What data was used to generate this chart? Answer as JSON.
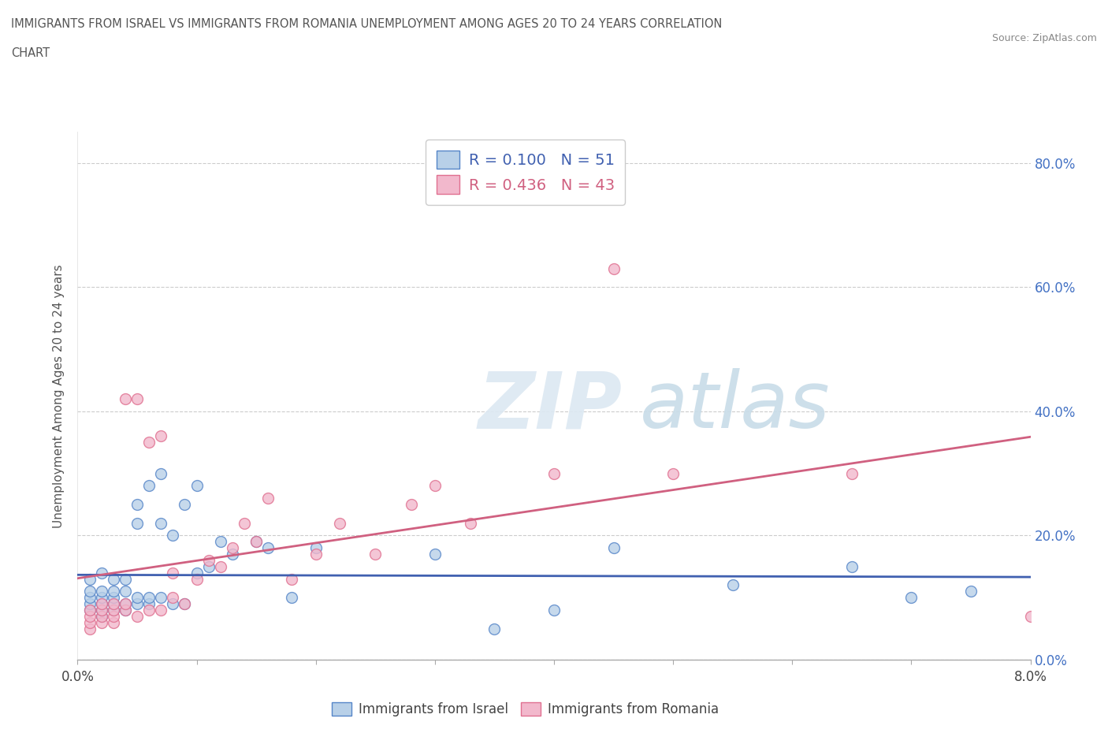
{
  "title_line1": "IMMIGRANTS FROM ISRAEL VS IMMIGRANTS FROM ROMANIA UNEMPLOYMENT AMONG AGES 20 TO 24 YEARS CORRELATION",
  "title_line2": "CHART",
  "source": "Source: ZipAtlas.com",
  "ylabel": "Unemployment Among Ages 20 to 24 years",
  "xlim": [
    0.0,
    0.08
  ],
  "ylim": [
    0.0,
    0.85
  ],
  "xticks": [
    0.0,
    0.01,
    0.02,
    0.03,
    0.04,
    0.05,
    0.06,
    0.07,
    0.08
  ],
  "yticks": [
    0.0,
    0.2,
    0.4,
    0.6,
    0.8
  ],
  "ytick_labels": [
    "0.0%",
    "20.0%",
    "40.0%",
    "60.0%",
    "80.0%"
  ],
  "xtick_labels": [
    "0.0%",
    "",
    "",
    "",
    "",
    "",
    "",
    "",
    "8.0%"
  ],
  "israel_color": "#b8d0e8",
  "romania_color": "#f2b8cc",
  "israel_edge_color": "#5585c8",
  "romania_edge_color": "#e07090",
  "israel_line_color": "#4060b0",
  "romania_line_color": "#d06080",
  "israel_label": "Immigrants from Israel",
  "romania_label": "Immigrants from Romania",
  "R_israel": 0.1,
  "N_israel": 51,
  "R_romania": 0.436,
  "N_romania": 43,
  "background_color": "#ffffff",
  "grid_color": "#cccccc",
  "israel_x": [
    0.001,
    0.001,
    0.001,
    0.001,
    0.001,
    0.002,
    0.002,
    0.002,
    0.002,
    0.002,
    0.002,
    0.003,
    0.003,
    0.003,
    0.003,
    0.003,
    0.004,
    0.004,
    0.004,
    0.004,
    0.005,
    0.005,
    0.005,
    0.005,
    0.006,
    0.006,
    0.006,
    0.007,
    0.007,
    0.007,
    0.008,
    0.008,
    0.009,
    0.009,
    0.01,
    0.01,
    0.011,
    0.012,
    0.013,
    0.015,
    0.016,
    0.018,
    0.02,
    0.03,
    0.035,
    0.04,
    0.045,
    0.055,
    0.065,
    0.07,
    0.075
  ],
  "israel_y": [
    0.08,
    0.09,
    0.1,
    0.11,
    0.13,
    0.07,
    0.08,
    0.09,
    0.1,
    0.11,
    0.14,
    0.08,
    0.09,
    0.1,
    0.11,
    0.13,
    0.08,
    0.09,
    0.11,
    0.13,
    0.09,
    0.1,
    0.22,
    0.25,
    0.09,
    0.1,
    0.28,
    0.1,
    0.22,
    0.3,
    0.09,
    0.2,
    0.09,
    0.25,
    0.14,
    0.28,
    0.15,
    0.19,
    0.17,
    0.19,
    0.18,
    0.1,
    0.18,
    0.17,
    0.05,
    0.08,
    0.18,
    0.12,
    0.15,
    0.1,
    0.11
  ],
  "romania_x": [
    0.001,
    0.001,
    0.001,
    0.001,
    0.002,
    0.002,
    0.002,
    0.002,
    0.003,
    0.003,
    0.003,
    0.003,
    0.004,
    0.004,
    0.004,
    0.005,
    0.005,
    0.006,
    0.006,
    0.007,
    0.007,
    0.008,
    0.008,
    0.009,
    0.01,
    0.011,
    0.012,
    0.013,
    0.014,
    0.015,
    0.016,
    0.018,
    0.02,
    0.022,
    0.025,
    0.028,
    0.03,
    0.033,
    0.04,
    0.045,
    0.05,
    0.065,
    0.08
  ],
  "romania_y": [
    0.05,
    0.06,
    0.07,
    0.08,
    0.06,
    0.07,
    0.08,
    0.09,
    0.06,
    0.07,
    0.08,
    0.09,
    0.08,
    0.09,
    0.42,
    0.07,
    0.42,
    0.08,
    0.35,
    0.08,
    0.36,
    0.1,
    0.14,
    0.09,
    0.13,
    0.16,
    0.15,
    0.18,
    0.22,
    0.19,
    0.26,
    0.13,
    0.17,
    0.22,
    0.17,
    0.25,
    0.28,
    0.22,
    0.3,
    0.63,
    0.3,
    0.3,
    0.07
  ]
}
